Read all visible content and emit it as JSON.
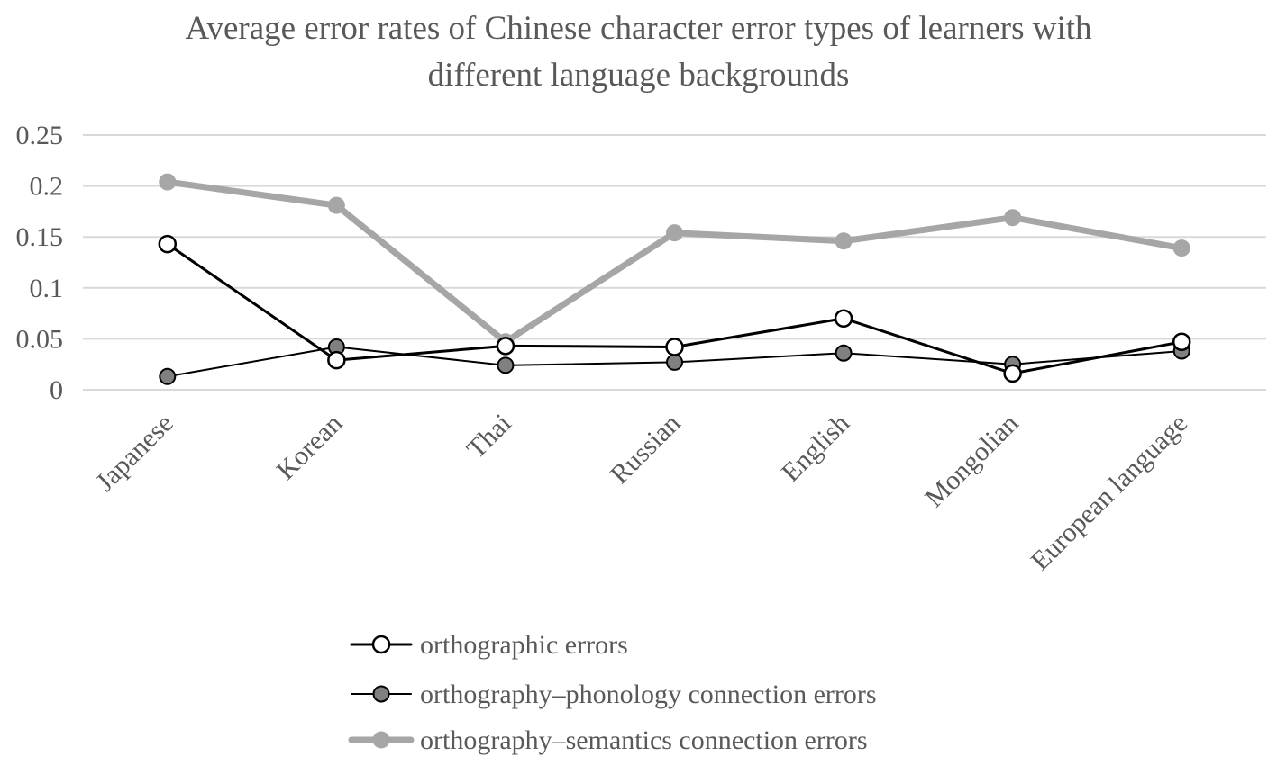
{
  "chart_data": {
    "type": "line",
    "title_lines": [
      "Average error rates of Chinese character error types of learners with",
      "different language backgrounds"
    ],
    "xlabel": "",
    "ylabel": "",
    "categories": [
      "Japanese",
      "Korean",
      "Thai",
      "Russian",
      "English",
      "Mongolian",
      "European language"
    ],
    "ylim": [
      0,
      0.25
    ],
    "yticks": [
      0,
      0.05,
      0.1,
      0.15,
      0.2,
      0.25
    ],
    "ytick_labels": [
      "0",
      "0.05",
      "0.1",
      "0.15",
      "0.2",
      "0.25"
    ],
    "grid": true,
    "legend_position": "bottom",
    "series": [
      {
        "name": "orthographic errors",
        "values": [
          0.143,
          0.029,
          0.043,
          0.042,
          0.07,
          0.016,
          0.047
        ],
        "line_color": "#000000",
        "marker_fill": "#ffffff",
        "marker_stroke": "#000000",
        "line_style": "thin-black-hollow-marker"
      },
      {
        "name": "orthography–phonology connection errors",
        "values": [
          0.013,
          0.042,
          0.024,
          0.027,
          0.036,
          0.025,
          0.038
        ],
        "line_color": "#000000",
        "marker_fill": "#808080",
        "marker_stroke": "#000000",
        "line_style": "thin-black-gray-marker"
      },
      {
        "name": "orthography–semantics connection errors",
        "values": [
          0.204,
          0.181,
          0.047,
          0.154,
          0.146,
          0.169,
          0.139
        ],
        "line_color": "#a6a6a6",
        "marker_fill": "#a6a6a6",
        "marker_stroke": "#a6a6a6",
        "line_style": "thick-gray"
      }
    ],
    "colors": {
      "grid": "#d9d9d9",
      "text": "#595959",
      "axis": "#d9d9d9"
    }
  }
}
